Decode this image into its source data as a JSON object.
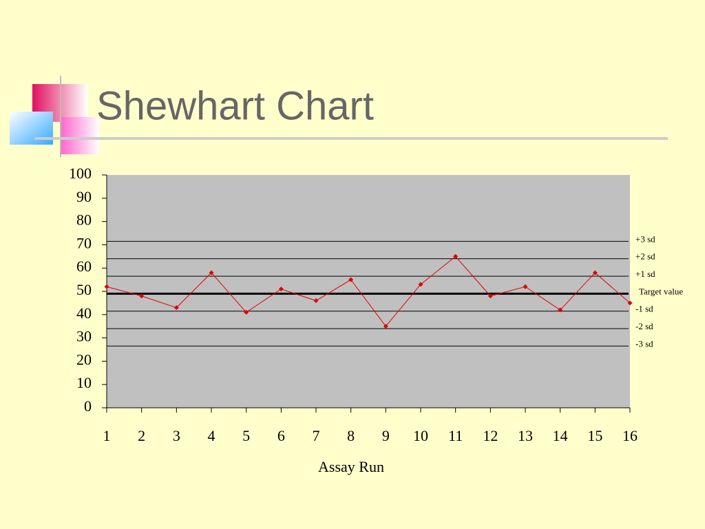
{
  "chart_data": {
    "type": "line",
    "title": "Shewhart Chart",
    "x_label": "Assay Run",
    "x": [
      1,
      2,
      3,
      4,
      5,
      6,
      7,
      8,
      9,
      10,
      11,
      12,
      13,
      14,
      15,
      16
    ],
    "values": [
      52,
      48,
      43,
      58,
      41,
      51,
      46,
      55,
      35,
      53,
      65,
      48,
      52,
      42,
      58,
      45
    ],
    "color": "#e00000",
    "xlim": [
      1,
      16
    ],
    "xticks": [
      1,
      2,
      3,
      4,
      5,
      6,
      7,
      8,
      9,
      10,
      11,
      12,
      13,
      14,
      15,
      16
    ],
    "ylim": [
      0,
      100
    ],
    "yticks": [
      0,
      10,
      20,
      30,
      40,
      50,
      60,
      70,
      80,
      90,
      100
    ],
    "reference_lines": [
      {
        "label": "+3 sd",
        "value": 71.5
      },
      {
        "label": "+2 sd",
        "value": 64
      },
      {
        "label": "+1 sd",
        "value": 56.5
      },
      {
        "label": "Target value",
        "value": 49,
        "style": "bold"
      },
      {
        "label": "-1 sd",
        "value": 41.5
      },
      {
        "label": "-2 sd",
        "value": 34
      },
      {
        "label": "-3 sd",
        "value": 26.5
      }
    ]
  }
}
